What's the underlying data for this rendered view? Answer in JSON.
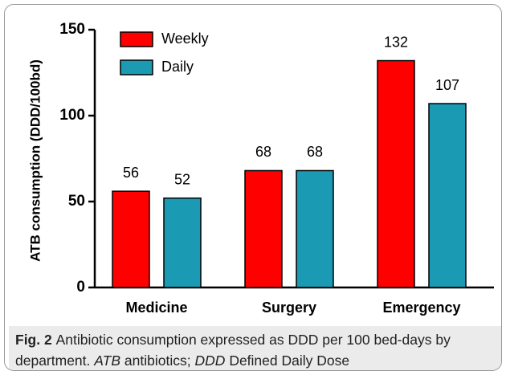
{
  "chart_data": {
    "type": "bar",
    "y_label": "ATB consumption (DDD/100bd)",
    "categories": [
      "Medicine",
      "Surgery",
      "Emergency"
    ],
    "series": [
      {
        "name": "Weekly",
        "color": "#ff0000",
        "values": [
          56,
          68,
          132
        ]
      },
      {
        "name": "Daily",
        "color": "#1b9ab3",
        "values": [
          52,
          68,
          107
        ]
      }
    ],
    "ylim": [
      0,
      150
    ],
    "yticks": [
      0,
      50,
      100,
      150
    ],
    "legend": "upper left"
  },
  "caption": {
    "label": "Fig. 2",
    "parts": [
      {
        "text": "Antibiotic consumption expressed as DDD per 100 bed-days by department.",
        "italic": false
      },
      {
        "text": "ATB",
        "italic": true
      },
      {
        "text": "antibiotics;",
        "italic": false
      },
      {
        "text": "DDD",
        "italic": true
      },
      {
        "text": "Defined Daily Dose",
        "italic": false
      }
    ]
  }
}
